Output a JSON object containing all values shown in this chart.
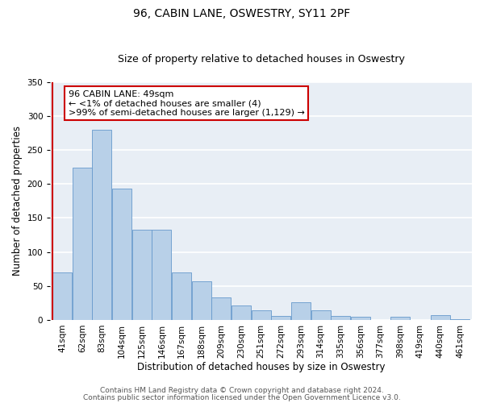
{
  "title": "96, CABIN LANE, OSWESTRY, SY11 2PF",
  "subtitle": "Size of property relative to detached houses in Oswestry",
  "xlabel": "Distribution of detached houses by size in Oswestry",
  "ylabel": "Number of detached properties",
  "bar_labels": [
    "41sqm",
    "62sqm",
    "83sqm",
    "104sqm",
    "125sqm",
    "146sqm",
    "167sqm",
    "188sqm",
    "209sqm",
    "230sqm",
    "251sqm",
    "272sqm",
    "293sqm",
    "314sqm",
    "335sqm",
    "356sqm",
    "377sqm",
    "398sqm",
    "419sqm",
    "440sqm",
    "461sqm"
  ],
  "bar_values": [
    70,
    224,
    280,
    193,
    133,
    133,
    70,
    57,
    33,
    21,
    14,
    6,
    26,
    14,
    6,
    5,
    0,
    5,
    0,
    7,
    1
  ],
  "bar_color": "#b8d0e8",
  "bar_edgecolor": "#6699cc",
  "annotation_box_text": "96 CABIN LANE: 49sqm\n← <1% of detached houses are smaller (4)\n>99% of semi-detached houses are larger (1,129) →",
  "annotation_box_edgecolor": "#cc0000",
  "annotation_box_facecolor": "#ffffff",
  "ylim": [
    0,
    350
  ],
  "yticks": [
    0,
    50,
    100,
    150,
    200,
    250,
    300,
    350
  ],
  "footer_line1": "Contains HM Land Registry data © Crown copyright and database right 2024.",
  "footer_line2": "Contains public sector information licensed under the Open Government Licence v3.0.",
  "plot_bg_color": "#e8eef5",
  "fig_bg_color": "#ffffff",
  "grid_color": "#ffffff",
  "title_fontsize": 10,
  "subtitle_fontsize": 9,
  "axis_label_fontsize": 8.5,
  "tick_fontsize": 7.5,
  "annotation_fontsize": 8,
  "footer_fontsize": 6.5
}
